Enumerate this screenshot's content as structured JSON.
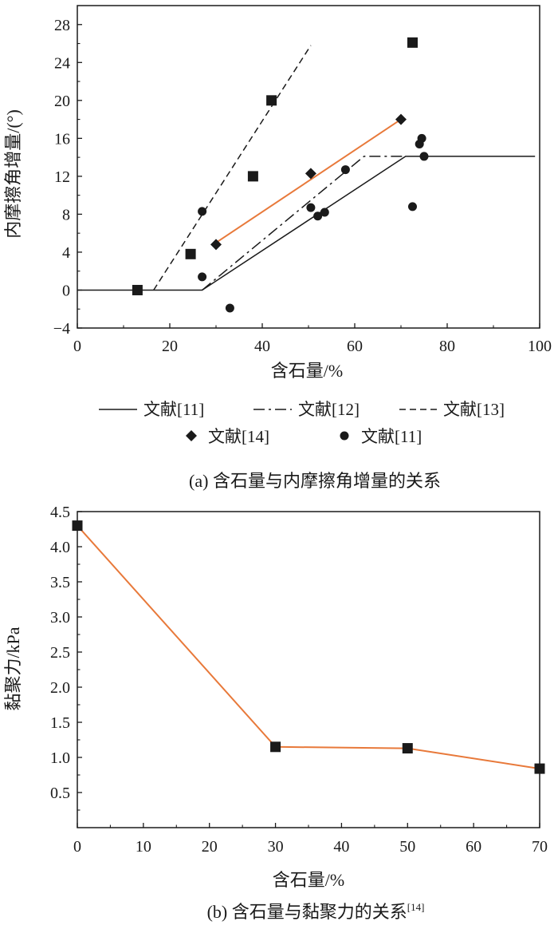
{
  "chart_data": [
    {
      "type": "scatter",
      "xlabel": "含石量/%",
      "ylabel": "内摩擦角增量/(°)",
      "xlim": [
        0,
        100
      ],
      "ylim": [
        -4,
        30
      ],
      "xticks": [
        "0",
        "20",
        "40",
        "60",
        "80",
        "100"
      ],
      "yticks": [
        "−4",
        "0",
        "4",
        "8",
        "12",
        "16",
        "20",
        "24",
        "28"
      ],
      "caption": "(a) 含石量与内摩擦角增量的关系",
      "legend": {
        "position": "below",
        "items": [
          {
            "label": "文献[11]",
            "marker": "solid-line"
          },
          {
            "label": "文献[12]",
            "marker": "dashdot-line"
          },
          {
            "label": "文献[13]",
            "marker": "dashed-line"
          },
          {
            "label": "文献[14]",
            "marker": "diamond"
          },
          {
            "label": "文献[11]",
            "marker": "circle"
          }
        ]
      },
      "series": [
        {
          "name": "文献[11]",
          "kind": "line",
          "style": "solid",
          "color": "#1a1a1a",
          "points": [
            [
              0,
              0
            ],
            [
              27,
              0
            ],
            [
              71,
              14.1
            ],
            [
              99,
              14.1
            ]
          ]
        },
        {
          "name": "文献[12]",
          "kind": "line",
          "style": "dashdot",
          "color": "#1a1a1a",
          "points": [
            [
              27,
              0
            ],
            [
              62,
              14.1
            ],
            [
              71,
              14.1
            ]
          ]
        },
        {
          "name": "文献[13]",
          "kind": "line",
          "style": "dashed",
          "color": "#1a1a1a",
          "points": [
            [
              16.5,
              0
            ],
            [
              50.5,
              25.8
            ]
          ]
        },
        {
          "kind": "line",
          "style": "solid",
          "color": "#e8793a",
          "points": [
            [
              30,
              5
            ],
            [
              70,
              18
            ]
          ]
        },
        {
          "name": "文献[13]",
          "kind": "scatter",
          "marker": "square",
          "color": "#1a1a1a",
          "points": [
            [
              13,
              0
            ],
            [
              24.5,
              3.8
            ],
            [
              38,
              12
            ],
            [
              42,
              20
            ],
            [
              72.5,
              26.1
            ]
          ]
        },
        {
          "name": "文献[14]",
          "kind": "scatter",
          "marker": "diamond",
          "color": "#1a1a1a",
          "points": [
            [
              30,
              4.8
            ],
            [
              50.5,
              12.3
            ],
            [
              70,
              18
            ]
          ]
        },
        {
          "name": "文献[11]",
          "kind": "scatter",
          "marker": "circle",
          "color": "#1a1a1a",
          "points": [
            [
              27,
              8.3
            ],
            [
              27,
              1.4
            ],
            [
              33,
              -1.9
            ],
            [
              50.5,
              8.7
            ],
            [
              52,
              7.8
            ],
            [
              53.5,
              8.2
            ],
            [
              58,
              12.7
            ],
            [
              72.5,
              8.8
            ],
            [
              74,
              15.4
            ],
            [
              74.5,
              16
            ],
            [
              75,
              14.1
            ]
          ]
        }
      ]
    },
    {
      "type": "line",
      "xlabel": "含石量/%",
      "ylabel": "黏聚力/kPa",
      "xlim": [
        0,
        70
      ],
      "ylim": [
        0,
        4.5
      ],
      "xticks": [
        "0",
        "10",
        "20",
        "30",
        "40",
        "50",
        "60",
        "70"
      ],
      "yticks": [
        "0.5",
        "1.0",
        "1.5",
        "2.0",
        "2.5",
        "3.0",
        "3.5",
        "4.0",
        "4.5"
      ],
      "caption": "(b) 含石量与黏聚力的关系",
      "caption_ref": "[14]",
      "series": [
        {
          "kind": "line",
          "marker": "square",
          "line_color": "#e8793a",
          "marker_color": "#1a1a1a",
          "x": [
            0,
            30,
            50,
            70
          ],
          "values": [
            4.3,
            1.15,
            1.13,
            0.84
          ]
        }
      ]
    }
  ]
}
